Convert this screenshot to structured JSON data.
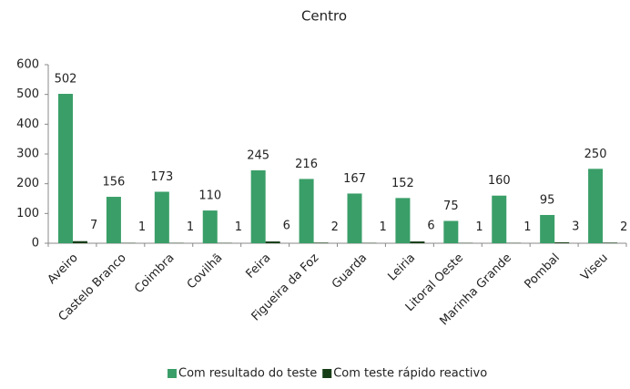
{
  "chart_data": {
    "type": "bar",
    "title": "Centro",
    "categories": [
      "Aveiro",
      "Castelo Branco",
      "Coimbra",
      "Covilhã",
      "Feira",
      "Figueira da Foz",
      "Guarda",
      "Leiria",
      "Litoral Oeste",
      "Marinha Grande",
      "Pombal",
      "Viseu"
    ],
    "series": [
      {
        "name": "Com resultado do teste",
        "color": "#3a9e68",
        "values": [
          502,
          156,
          173,
          110,
          245,
          216,
          167,
          152,
          75,
          160,
          95,
          250
        ]
      },
      {
        "name": "Com teste rápido reactivo",
        "color": "#173d17",
        "values": [
          7,
          1,
          1,
          1,
          6,
          2,
          1,
          6,
          1,
          1,
          3,
          2
        ]
      }
    ],
    "ylim": [
      0,
      600
    ],
    "yticks": [
      0,
      100,
      200,
      300,
      400,
      500,
      600
    ],
    "legend": "bottom"
  }
}
